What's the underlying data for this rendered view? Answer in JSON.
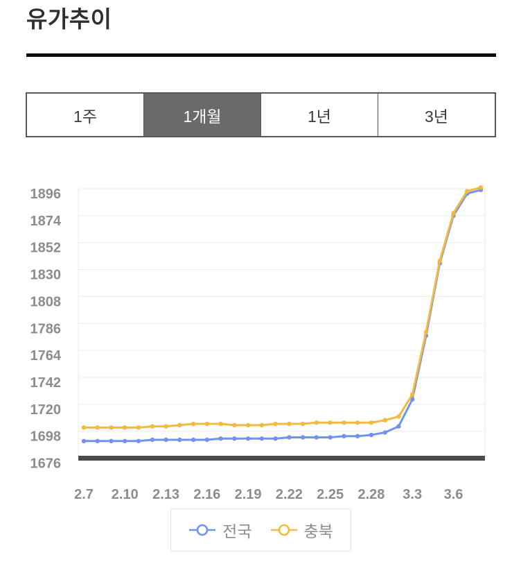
{
  "page": {
    "title": "유가추이"
  },
  "tabs": [
    {
      "key": "1week",
      "label": "1주",
      "active": false
    },
    {
      "key": "1month",
      "label": "1개월",
      "active": true
    },
    {
      "key": "1year",
      "label": "1년",
      "active": false
    },
    {
      "key": "3year",
      "label": "3년",
      "active": false
    }
  ],
  "chart_data": {
    "type": "line",
    "title": "유가추이",
    "x": [
      "2.7",
      "2.8",
      "2.9",
      "2.10",
      "2.11",
      "2.12",
      "2.13",
      "2.14",
      "2.15",
      "2.16",
      "2.17",
      "2.18",
      "2.19",
      "2.20",
      "2.21",
      "2.22",
      "2.23",
      "2.24",
      "2.25",
      "2.26",
      "2.27",
      "2.28",
      "3.1",
      "3.2",
      "3.3",
      "3.4",
      "3.5",
      "3.6",
      "3.7",
      "3.8"
    ],
    "x_tick_labels": [
      "2.7",
      "2.10",
      "2.13",
      "2.16",
      "2.19",
      "2.22",
      "2.25",
      "2.28",
      "3.3",
      "3.6"
    ],
    "series": [
      {
        "key": "national",
        "name": "전국",
        "color": "#7093EF",
        "values": [
          1690,
          1690,
          1690,
          1690,
          1690,
          1691,
          1691,
          1691,
          1691,
          1691,
          1692,
          1692,
          1692,
          1692,
          1692,
          1693,
          1693,
          1693,
          1693,
          1694,
          1694,
          1695,
          1697,
          1702,
          1724,
          1776,
          1835,
          1874,
          1892,
          1895
        ]
      },
      {
        "key": "chungbuk",
        "name": "충북",
        "color": "#F4B93E",
        "values": [
          1701,
          1701,
          1701,
          1701,
          1701,
          1702,
          1702,
          1703,
          1704,
          1704,
          1704,
          1703,
          1703,
          1703,
          1704,
          1704,
          1704,
          1705,
          1705,
          1705,
          1705,
          1705,
          1707,
          1710,
          1728,
          1779,
          1837,
          1876,
          1894,
          1897
        ]
      }
    ],
    "y_ticks": [
      1896,
      1874,
      1852,
      1830,
      1808,
      1786,
      1764,
      1742,
      1720,
      1698,
      1676
    ],
    "ylim": [
      1676,
      1896
    ],
    "grid": true,
    "legend_position": "bottom"
  },
  "colors": {
    "axis_label": "#8c8c8c",
    "gridline": "#ebebeb",
    "axis_baseline": "#4b4b4b",
    "tab_active_bg": "#6a6a6a",
    "tab_border": "#585858",
    "title_text": "#2f2f2f"
  }
}
